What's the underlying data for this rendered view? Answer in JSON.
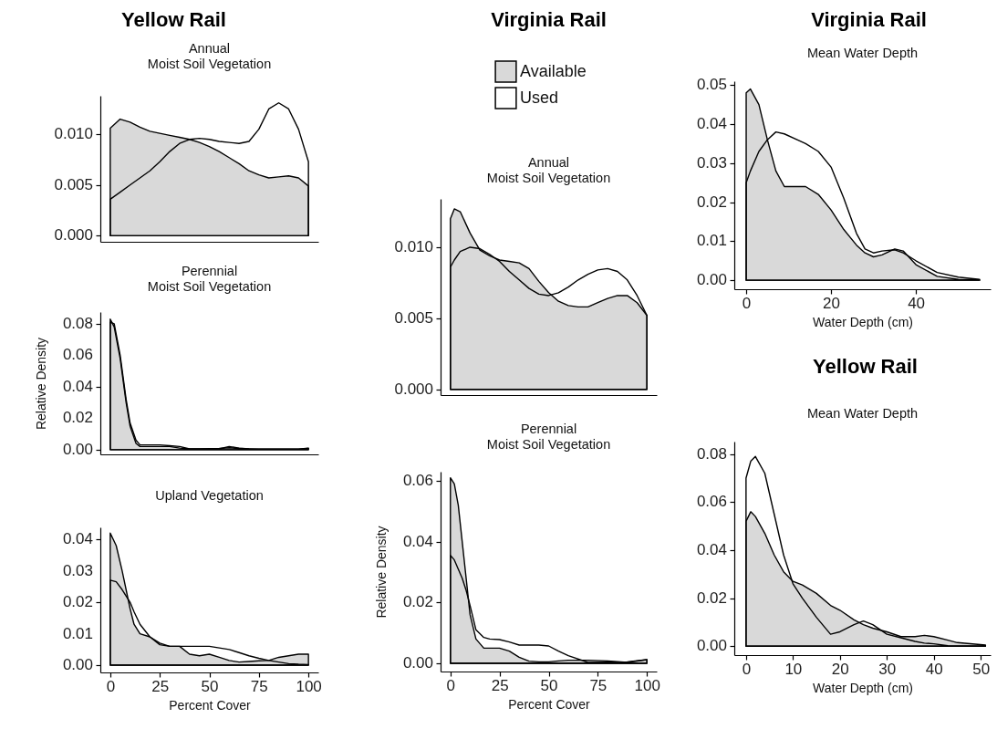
{
  "chart_data": [
    {
      "type": "area",
      "title": "Yellow Rail",
      "subtitle": "Annual\nMoist Soil Vegetation",
      "tick_labels": "y",
      "xlim": [
        -5,
        105
      ],
      "xticks": [
        0,
        25,
        50,
        75,
        100
      ],
      "ylim": [
        -0.0006,
        0.0138
      ],
      "yticks": [
        {
          "value": 0,
          "label": "0.000"
        },
        {
          "value": 0.005,
          "label": "0.005"
        },
        {
          "value": 0.01,
          "label": "0.010"
        }
      ],
      "x": [
        0,
        5,
        10,
        15,
        20,
        25,
        30,
        35,
        40,
        45,
        50,
        55,
        60,
        65,
        70,
        75,
        80,
        85,
        90,
        95,
        100
      ],
      "series": [
        {
          "color": "#d9d9d9",
          "values": [
            0.0106,
            0.0115,
            0.0112,
            0.0107,
            0.0103,
            0.0101,
            0.0099,
            0.0097,
            0.0095,
            0.0092,
            0.0088,
            0.0083,
            0.0077,
            0.0071,
            0.0064,
            0.006,
            0.0057,
            0.0058,
            0.0059,
            0.0057,
            0.0049
          ]
        },
        {
          "color": "#ffffff",
          "values": [
            0.0036,
            0.0043,
            0.005,
            0.0057,
            0.0064,
            0.0073,
            0.0083,
            0.0091,
            0.0095,
            0.0096,
            0.0095,
            0.0093,
            0.0092,
            0.0091,
            0.0093,
            0.0105,
            0.0125,
            0.0131,
            0.0125,
            0.0105,
            0.0073
          ]
        }
      ]
    },
    {
      "type": "area",
      "subtitle": "Perennial\nMoist Soil Vegetation",
      "ylabel": "Relative Density",
      "tick_labels": "y",
      "xlim": [
        -5,
        105
      ],
      "xticks": [
        0,
        25,
        50,
        75,
        100
      ],
      "ylim": [
        -0.003,
        0.0875
      ],
      "yticks": [
        {
          "value": 0,
          "label": "0.00"
        },
        {
          "value": 0.02,
          "label": "0.02"
        },
        {
          "value": 0.04,
          "label": "0.04"
        },
        {
          "value": 0.06,
          "label": "0.06"
        },
        {
          "value": 0.08,
          "label": "0.08"
        }
      ],
      "x": [
        0,
        2,
        5,
        8,
        10,
        13,
        15,
        20,
        25,
        30,
        35,
        40,
        45,
        55,
        60,
        65,
        70,
        75,
        85,
        95,
        100
      ],
      "series": [
        {
          "color": "#d9d9d9",
          "values": [
            0.083,
            0.078,
            0.058,
            0.03,
            0.015,
            0.004,
            0.002,
            0.002,
            0.002,
            0.002,
            0.001,
            0.0005,
            0.0005,
            0.0008,
            0.0012,
            0.0008,
            0.0005,
            0.0003,
            0.0003,
            0.0003,
            0.0008
          ]
        },
        {
          "color": "#ffffff",
          "values": [
            0.081,
            0.08,
            0.06,
            0.032,
            0.017,
            0.006,
            0.003,
            0.003,
            0.003,
            0.0025,
            0.002,
            0.0005,
            0.0005,
            0.0005,
            0.002,
            0.001,
            0.0005,
            0.0003,
            0.0003,
            0.0003,
            0.001
          ]
        }
      ]
    },
    {
      "type": "area",
      "subtitle": "Upland Vegetation",
      "xlabel": "Percent Cover",
      "xlim": [
        -5,
        105
      ],
      "xticks": [
        0,
        25,
        50,
        75,
        100
      ],
      "ylim": [
        -0.0023,
        0.0438
      ],
      "yticks": [
        {
          "value": 0,
          "label": "0.00"
        },
        0.01,
        0.02,
        0.03,
        0.04
      ],
      "x": [
        0,
        3,
        6,
        10,
        12,
        15,
        20,
        25,
        30,
        35,
        40,
        45,
        50,
        55,
        60,
        65,
        70,
        75,
        80,
        85,
        90,
        95,
        100
      ],
      "series": [
        {
          "color": "#d9d9d9",
          "values": [
            0.042,
            0.038,
            0.03,
            0.018,
            0.013,
            0.01,
            0.009,
            0.0065,
            0.006,
            0.006,
            0.0035,
            0.003,
            0.0035,
            0.0025,
            0.0015,
            0.001,
            0.0012,
            0.0014,
            0.0015,
            0.0025,
            0.003,
            0.0035,
            0.0035
          ]
        },
        {
          "color": "#ffffff",
          "values": [
            0.027,
            0.0265,
            0.024,
            0.02,
            0.017,
            0.013,
            0.009,
            0.007,
            0.006,
            0.006,
            0.006,
            0.006,
            0.006,
            0.0055,
            0.005,
            0.004,
            0.003,
            0.0022,
            0.0015,
            0.001,
            0.0005,
            0.0003,
            0.0002
          ]
        }
      ]
    },
    {
      "type": "area",
      "title": "Virginia Rail",
      "subtitle": "Annual\nMoist Soil Vegetation",
      "legend": "top",
      "tick_labels": "y",
      "xlim": [
        -5,
        105
      ],
      "xticks": [
        0,
        25,
        50,
        75,
        100
      ],
      "ylim": [
        -0.0004,
        0.0134
      ],
      "yticks": [
        {
          "value": 0,
          "label": "0.000"
        },
        {
          "value": 0.005,
          "label": "0.005"
        },
        {
          "value": 0.01,
          "label": "0.010"
        }
      ],
      "x": [
        0,
        2,
        5,
        10,
        15,
        20,
        25,
        30,
        35,
        40,
        45,
        50,
        55,
        60,
        65,
        70,
        75,
        80,
        85,
        90,
        95,
        100
      ],
      "series": [
        {
          "name": "Available",
          "color": "#d9d9d9",
          "values": [
            0.012,
            0.0127,
            0.0125,
            0.011,
            0.0098,
            0.0094,
            0.0091,
            0.009,
            0.0089,
            0.0085,
            0.0076,
            0.0068,
            0.0062,
            0.0059,
            0.0058,
            0.0058,
            0.0061,
            0.0064,
            0.0066,
            0.0066,
            0.0061,
            0.0052
          ]
        },
        {
          "name": "Used",
          "color": "#ffffff",
          "values": [
            0.0086,
            0.0091,
            0.0097,
            0.01,
            0.0099,
            0.0095,
            0.009,
            0.0083,
            0.0077,
            0.0071,
            0.0067,
            0.0066,
            0.0068,
            0.0072,
            0.0077,
            0.0081,
            0.0084,
            0.0085,
            0.0083,
            0.0077,
            0.0066,
            0.0052
          ]
        }
      ]
    },
    {
      "type": "area",
      "subtitle": "Perennial\nMoist Soil Vegetation",
      "ylabel": "Relative Density",
      "xlabel": "Percent Cover",
      "xlim": [
        -5,
        105
      ],
      "xticks": [
        0,
        25,
        50,
        75,
        100
      ],
      "ylim": [
        -0.0027,
        0.063
      ],
      "yticks": [
        {
          "value": 0,
          "label": "0.00"
        },
        {
          "value": 0.02,
          "label": "0.02"
        },
        {
          "value": 0.04,
          "label": "0.04"
        },
        {
          "value": 0.06,
          "label": "0.06"
        }
      ],
      "x": [
        0,
        2,
        4,
        6,
        8,
        10,
        13,
        17,
        20,
        25,
        30,
        35,
        40,
        45,
        50,
        55,
        60,
        70,
        80,
        90,
        100
      ],
      "series": [
        {
          "color": "#d9d9d9",
          "values": [
            0.061,
            0.059,
            0.052,
            0.04,
            0.028,
            0.016,
            0.008,
            0.005,
            0.005,
            0.005,
            0.004,
            0.002,
            0.0007,
            0.0005,
            0.0005,
            0.0008,
            0.001,
            0.001,
            0.0008,
            0.0003,
            0.0012
          ]
        },
        {
          "color": "#ffffff",
          "values": [
            0.0355,
            0.034,
            0.031,
            0.028,
            0.024,
            0.019,
            0.011,
            0.0085,
            0.008,
            0.0078,
            0.007,
            0.006,
            0.006,
            0.006,
            0.0057,
            0.004,
            0.0025,
            0.0003,
            0.0004,
            0.0005,
            0.0012
          ]
        }
      ]
    },
    {
      "type": "area",
      "title": "Virginia Rail",
      "subtitle": "Mean Water Depth",
      "xlabel": "Water Depth (cm)",
      "xlim": [
        -2.8,
        57.6
      ],
      "xticks": [
        0,
        20,
        40
      ],
      "ylim": [
        -0.0023,
        0.051
      ],
      "yticks": [
        {
          "value": 0,
          "label": "0.00"
        },
        0.01,
        0.02,
        0.03,
        0.04,
        0.05
      ],
      "x": [
        0,
        1,
        3,
        5,
        7,
        9,
        12,
        14,
        17,
        20,
        23,
        26,
        28,
        30,
        32,
        35,
        37,
        40,
        45,
        50,
        55
      ],
      "series": [
        {
          "color": "#d9d9d9",
          "values": [
            0.048,
            0.049,
            0.045,
            0.036,
            0.028,
            0.024,
            0.024,
            0.024,
            0.022,
            0.018,
            0.013,
            0.009,
            0.007,
            0.006,
            0.0065,
            0.008,
            0.0075,
            0.004,
            0.001,
            0.0002,
            0.0001
          ]
        },
        {
          "color": "#ffffff",
          "values": [
            0.025,
            0.028,
            0.033,
            0.036,
            0.038,
            0.0375,
            0.036,
            0.035,
            0.033,
            0.029,
            0.021,
            0.012,
            0.008,
            0.007,
            0.0075,
            0.0078,
            0.007,
            0.005,
            0.002,
            0.0008,
            0.0002
          ]
        }
      ]
    },
    {
      "type": "area",
      "title": "Yellow Rail",
      "subtitle": "Mean Water Depth",
      "xlabel": "Water Depth (cm)",
      "xlim": [
        -2.5,
        52.1
      ],
      "xticks": [
        0,
        10,
        20,
        30,
        40,
        50
      ],
      "ylim": [
        -0.0037,
        0.0852
      ],
      "yticks": [
        {
          "value": 0,
          "label": "0.00"
        },
        {
          "value": 0.02,
          "label": "0.02"
        },
        {
          "value": 0.04,
          "label": "0.04"
        },
        {
          "value": 0.06,
          "label": "0.06"
        },
        {
          "value": 0.08,
          "label": "0.08"
        }
      ],
      "x": [
        0,
        1,
        2,
        4,
        6,
        8,
        10,
        12,
        15,
        18,
        20,
        23,
        25,
        27,
        30,
        33,
        36,
        38,
        40,
        43,
        45,
        51
      ],
      "series": [
        {
          "color": "#d9d9d9",
          "values": [
            0.052,
            0.056,
            0.054,
            0.047,
            0.038,
            0.031,
            0.027,
            0.0255,
            0.022,
            0.017,
            0.015,
            0.011,
            0.009,
            0.0075,
            0.006,
            0.004,
            0.004,
            0.0045,
            0.004,
            0.0025,
            0.0015,
            0.0005
          ]
        },
        {
          "color": "#ffffff",
          "values": [
            0.07,
            0.077,
            0.079,
            0.072,
            0.055,
            0.038,
            0.026,
            0.02,
            0.012,
            0.005,
            0.006,
            0.009,
            0.0105,
            0.009,
            0.005,
            0.0035,
            0.002,
            0.0013,
            0.001,
            0.0002,
            0.0001,
            0.0001
          ]
        }
      ]
    }
  ]
}
